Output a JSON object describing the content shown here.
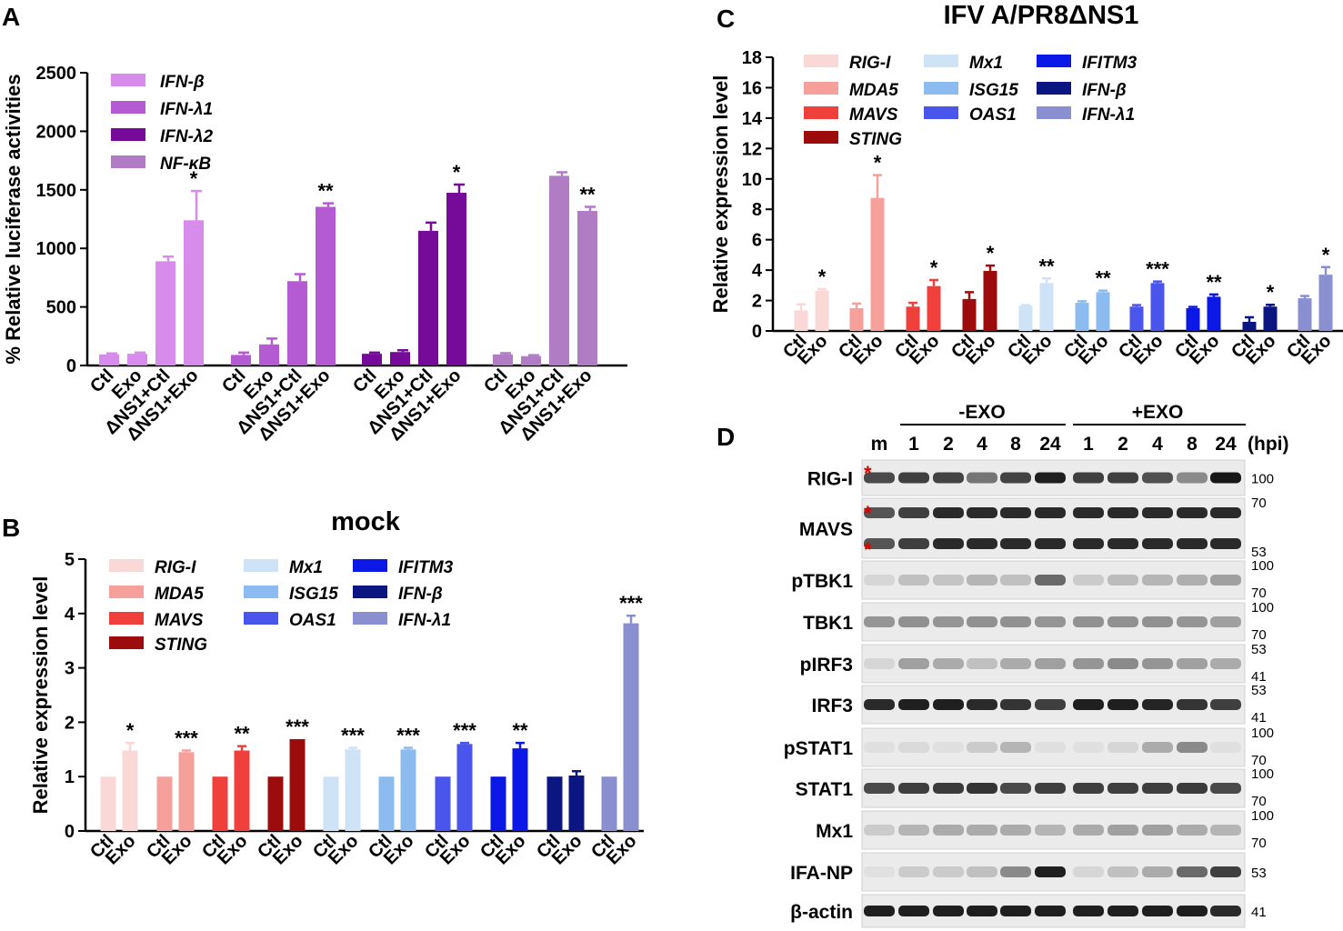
{
  "panels": {
    "a": "A",
    "b": "B",
    "c": "C",
    "d": "D"
  },
  "chart_data": [
    {
      "id": "A",
      "type": "bar",
      "title": "",
      "ylabel": "% Relative luciferase activities",
      "ylim": [
        0,
        2500
      ],
      "yticks": [
        "0",
        "500",
        "1000",
        "1500",
        "2000",
        "2500"
      ],
      "categories": [
        "Ctl",
        "Exo",
        "ΔNS1+Ctl",
        "ΔNS1+Exo"
      ],
      "groups": [
        {
          "name": "IFN-β",
          "color": "#d78bea",
          "values": [
            95,
            100,
            890,
            1240
          ],
          "errors": [
            8,
            10,
            40,
            250
          ],
          "sig": [
            "",
            "",
            "",
            "*"
          ]
        },
        {
          "name": "IFN-λ1",
          "color": "#b45ad3",
          "values": [
            90,
            180,
            720,
            1355
          ],
          "errors": [
            20,
            50,
            60,
            30
          ],
          "sig": [
            "",
            "",
            "",
            "**"
          ]
        },
        {
          "name": "IFN-λ2",
          "color": "#760b99",
          "values": [
            100,
            115,
            1150,
            1475
          ],
          "errors": [
            10,
            15,
            70,
            70
          ],
          "sig": [
            "",
            "",
            "",
            "*"
          ]
        },
        {
          "name": "NF-κB",
          "color": "#b07dc4",
          "values": [
            95,
            80,
            1620,
            1320
          ],
          "errors": [
            10,
            8,
            30,
            35
          ],
          "sig": [
            "",
            "",
            "",
            "**"
          ]
        }
      ]
    },
    {
      "id": "B",
      "type": "bar",
      "title": "mock",
      "ylabel": "Relative expression level",
      "ylim": [
        0,
        5
      ],
      "yticks": [
        "0",
        "1",
        "2",
        "3",
        "4",
        "5"
      ],
      "categories": [
        "Ctl",
        "Exo"
      ],
      "groups": [
        {
          "name": "RIG-I",
          "color": "#fbd8d8",
          "values": [
            1.0,
            1.48
          ],
          "errors": [
            0,
            0.14
          ],
          "sig": "*"
        },
        {
          "name": "MDA5",
          "color": "#f5a09b",
          "values": [
            1.0,
            1.45
          ],
          "errors": [
            0,
            0.03
          ],
          "sig": "***"
        },
        {
          "name": "MAVS",
          "color": "#f0403c",
          "values": [
            1.0,
            1.48
          ],
          "errors": [
            0,
            0.08
          ],
          "sig": "**"
        },
        {
          "name": "STING",
          "color": "#9c0c0c",
          "values": [
            1.0,
            1.69
          ],
          "errors": [
            0,
            0.0
          ],
          "sig": "***"
        },
        {
          "name": "Mx1",
          "color": "#cfe3f7",
          "values": [
            1.0,
            1.5
          ],
          "errors": [
            0,
            0.03
          ],
          "sig": "***"
        },
        {
          "name": "ISG15",
          "color": "#8cbcef",
          "values": [
            1.0,
            1.5
          ],
          "errors": [
            0,
            0.03
          ],
          "sig": "***"
        },
        {
          "name": "OAS1",
          "color": "#4a55ec",
          "values": [
            1.0,
            1.6
          ],
          "errors": [
            0,
            0.02
          ],
          "sig": "***"
        },
        {
          "name": "IFITM3",
          "color": "#0b18e6",
          "values": [
            1.0,
            1.52
          ],
          "errors": [
            0,
            0.1
          ],
          "sig": "**"
        },
        {
          "name": "IFN-β",
          "color": "#0c1680",
          "values": [
            1.0,
            1.02
          ],
          "errors": [
            0,
            0.08
          ],
          "sig": ""
        },
        {
          "name": "IFN-λ1",
          "color": "#8a90cf",
          "values": [
            1.0,
            3.82
          ],
          "errors": [
            0,
            0.14
          ],
          "sig": "***"
        }
      ]
    },
    {
      "id": "C",
      "type": "bar",
      "title": "IFV A/PR8ΔNS1",
      "ylabel": "Relative expression level",
      "ylim": [
        0,
        18
      ],
      "yticks": [
        "0",
        "2",
        "4",
        "6",
        "8",
        "10",
        "12",
        "14",
        "16",
        "18"
      ],
      "categories": [
        "Ctl",
        "Exo"
      ],
      "groups": [
        {
          "name": "RIG-I",
          "color": "#fbd8d8",
          "values": [
            1.35,
            2.65
          ],
          "errors": [
            0.4,
            0.1
          ],
          "sig": "*"
        },
        {
          "name": "MDA5",
          "color": "#f5a09b",
          "values": [
            1.5,
            8.75
          ],
          "errors": [
            0.3,
            1.5
          ],
          "sig": "*"
        },
        {
          "name": "MAVS",
          "color": "#f0403c",
          "values": [
            1.6,
            2.95
          ],
          "errors": [
            0.25,
            0.4
          ],
          "sig": "*"
        },
        {
          "name": "STING",
          "color": "#9c0c0c",
          "values": [
            2.1,
            3.95
          ],
          "errors": [
            0.45,
            0.35
          ],
          "sig": "*"
        },
        {
          "name": "Mx1",
          "color": "#cfe3f7",
          "values": [
            1.65,
            3.15
          ],
          "errors": [
            0.05,
            0.3
          ],
          "sig": "**"
        },
        {
          "name": "ISG15",
          "color": "#8cbcef",
          "values": [
            1.85,
            2.55
          ],
          "errors": [
            0.1,
            0.1
          ],
          "sig": "**"
        },
        {
          "name": "OAS1",
          "color": "#4a55ec",
          "values": [
            1.6,
            3.15
          ],
          "errors": [
            0.1,
            0.1
          ],
          "sig": "***"
        },
        {
          "name": "IFITM3",
          "color": "#0b18e6",
          "values": [
            1.5,
            2.25
          ],
          "errors": [
            0.08,
            0.15
          ],
          "sig": "**"
        },
        {
          "name": "IFN-β",
          "color": "#0c1680",
          "values": [
            0.6,
            1.6
          ],
          "errors": [
            0.3,
            0.12
          ],
          "sig": "*"
        },
        {
          "name": "IFN-λ1",
          "color": "#8a90cf",
          "values": [
            2.15,
            3.7
          ],
          "errors": [
            0.15,
            0.5
          ],
          "sig": "*"
        }
      ]
    }
  ],
  "western": {
    "header": {
      "neg": "-EXO",
      "pos": "+EXO",
      "lanes": [
        "m",
        "1",
        "2",
        "4",
        "8",
        "24",
        "1",
        "2",
        "4",
        "8",
        "24"
      ],
      "unit": "(hpi)"
    },
    "rows": [
      {
        "label": "RIG-I",
        "mw": [
          "100"
        ],
        "intensity": [
          0.75,
          0.8,
          0.78,
          0.55,
          0.78,
          0.95,
          0.8,
          0.8,
          0.72,
          0.45,
          0.98
        ],
        "bands": 1
      },
      {
        "label": "MAVS",
        "mw": [
          "70",
          "53"
        ],
        "intensity": [
          0.7,
          0.8,
          0.9,
          0.9,
          0.9,
          0.9,
          0.9,
          0.9,
          0.9,
          0.9,
          0.9
        ],
        "bands": 2
      },
      {
        "label": "pTBK1",
        "mw": [
          "100",
          "70"
        ],
        "intensity": [
          0.1,
          0.2,
          0.18,
          0.25,
          0.2,
          0.6,
          0.15,
          0.22,
          0.25,
          0.28,
          0.35
        ],
        "bands": 1
      },
      {
        "label": "TBK1",
        "mw": [
          "100",
          "70"
        ],
        "intensity": [
          0.4,
          0.42,
          0.4,
          0.42,
          0.42,
          0.4,
          0.42,
          0.42,
          0.42,
          0.4,
          0.35
        ],
        "bands": 1
      },
      {
        "label": "pIRF3",
        "mw": [
          "53",
          "41"
        ],
        "intensity": [
          0.1,
          0.35,
          0.3,
          0.2,
          0.3,
          0.35,
          0.4,
          0.45,
          0.4,
          0.35,
          0.3
        ],
        "bands": 1
      },
      {
        "label": "IRF3",
        "mw": [
          "53",
          "41"
        ],
        "intensity": [
          0.9,
          0.95,
          0.95,
          0.9,
          0.85,
          0.8,
          0.95,
          0.95,
          0.92,
          0.85,
          0.8
        ],
        "bands": 1
      },
      {
        "label": "pSTAT1",
        "mw": [
          "100",
          "70"
        ],
        "intensity": [
          0.05,
          0.08,
          0.05,
          0.15,
          0.25,
          0.05,
          0.05,
          0.1,
          0.3,
          0.45,
          0.05
        ],
        "bands": 1
      },
      {
        "label": "STAT1",
        "mw": [
          "100",
          "70"
        ],
        "intensity": [
          0.75,
          0.8,
          0.82,
          0.85,
          0.75,
          0.8,
          0.8,
          0.8,
          0.8,
          0.82,
          0.75
        ],
        "bands": 1
      },
      {
        "label": "Mx1",
        "mw": [
          "100",
          "70"
        ],
        "intensity": [
          0.15,
          0.25,
          0.3,
          0.3,
          0.3,
          0.25,
          0.3,
          0.35,
          0.35,
          0.3,
          0.25
        ],
        "bands": 1
      },
      {
        "label": "IFA-NP",
        "mw": [
          "53"
        ],
        "intensity": [
          0.05,
          0.15,
          0.15,
          0.2,
          0.45,
          0.95,
          0.1,
          0.2,
          0.3,
          0.6,
          0.8
        ],
        "bands": 1
      },
      {
        "label": "β-actin",
        "mw": [
          "41"
        ],
        "intensity": [
          0.95,
          0.95,
          0.95,
          0.95,
          0.95,
          0.95,
          0.95,
          0.95,
          0.95,
          0.95,
          0.9
        ],
        "bands": 1
      }
    ]
  }
}
